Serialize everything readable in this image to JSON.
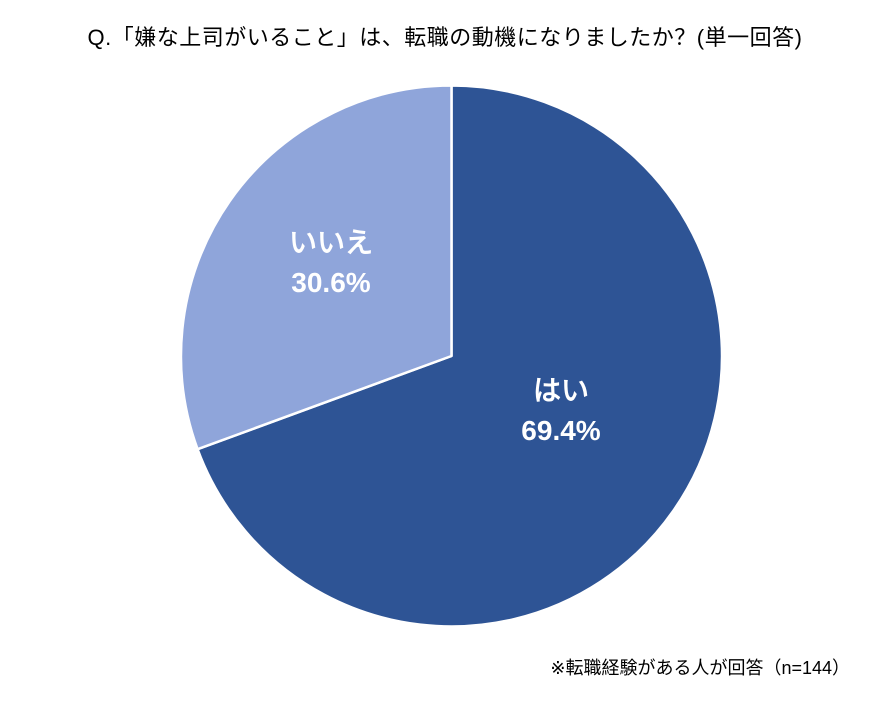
{
  "chart_data": {
    "type": "pie",
    "title": "Q.「嫌な上司がいること」は、転職の動機になりましたか？(単一回答)",
    "slices": [
      {
        "label": "はい",
        "value": 69.4,
        "display": "69.4%",
        "color": "#2E5495"
      },
      {
        "label": "いいえ",
        "value": 30.6,
        "display": "30.6%",
        "color": "#8FA5DA"
      }
    ],
    "start_angle_deg": 0,
    "direction": "clockwise",
    "slice_border_color": "#FFFFFF",
    "label_text_color": "#FFFFFF",
    "legend_position": "none",
    "note": "※転職経験がある人が回答（n=144）"
  }
}
